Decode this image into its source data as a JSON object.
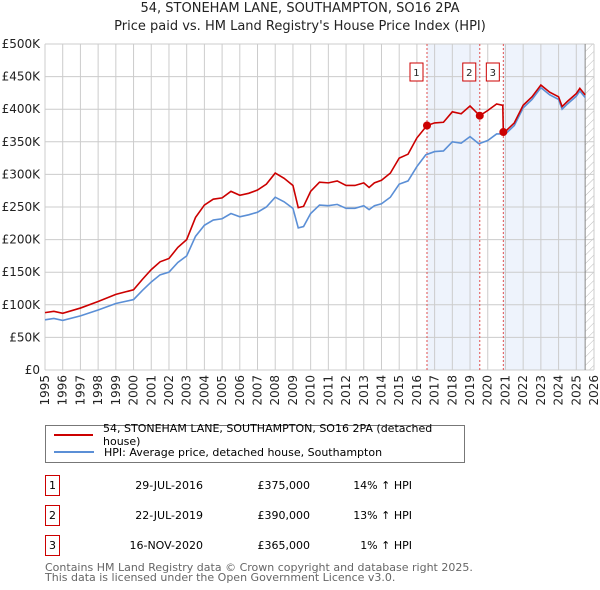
{
  "chart_data": {
    "type": "line",
    "title": "54, STONEHAM LANE, SOUTHAMPTON, SO16 2PA",
    "subtitle": "Price paid vs. HM Land Registry's House Price Index (HPI)",
    "xlim": [
      1995,
      2026
    ],
    "ylim": [
      0,
      500000
    ],
    "y_ticks": [
      {
        "v": 0,
        "label": "£0"
      },
      {
        "v": 50000,
        "label": "£50K"
      },
      {
        "v": 100000,
        "label": "£100K"
      },
      {
        "v": 150000,
        "label": "£150K"
      },
      {
        "v": 200000,
        "label": "£200K"
      },
      {
        "v": 250000,
        "label": "£250K"
      },
      {
        "v": 300000,
        "label": "£300K"
      },
      {
        "v": 350000,
        "label": "£350K"
      },
      {
        "v": 400000,
        "label": "£400K"
      },
      {
        "v": 450000,
        "label": "£450K"
      },
      {
        "v": 500000,
        "label": "£500K"
      }
    ],
    "x_ticks": [
      "1995",
      "1996",
      "1997",
      "1998",
      "1999",
      "2000",
      "2001",
      "2002",
      "2003",
      "2004",
      "2005",
      "2006",
      "2007",
      "2008",
      "2009",
      "2010",
      "2011",
      "2012",
      "2013",
      "2014",
      "2015",
      "2016",
      "2017",
      "2018",
      "2019",
      "2020",
      "2021",
      "2022",
      "2023",
      "2024",
      "2025",
      "2026"
    ],
    "grid": true,
    "series": [
      {
        "name": "54, STONEHAM LANE, SOUTHAMPTON, SO16 2PA (detached house)",
        "color": "#cc0000",
        "x": [
          1995,
          1995.5,
          1996,
          1997,
          1998,
          1999,
          2000,
          2000.5,
          2001,
          2001.5,
          2002,
          2002.5,
          2003,
          2003.5,
          2004,
          2004.5,
          2005,
          2005.5,
          2006,
          2006.5,
          2007,
          2007.5,
          2008,
          2008.5,
          2009,
          2009.3,
          2009.6,
          2010,
          2010.5,
          2011,
          2011.5,
          2012,
          2012.5,
          2013,
          2013.3,
          2013.6,
          2014,
          2014.5,
          2015,
          2015.5,
          2016,
          2016.57,
          2017,
          2017.5,
          2018,
          2018.5,
          2019,
          2019.55,
          2020,
          2020.5,
          2020.85,
          2020.88,
          2021,
          2021.5,
          2022,
          2022.5,
          2023,
          2023.5,
          2024,
          2024.2,
          2024.5,
          2025,
          2025.2,
          2025.5
        ],
        "y": [
          88000,
          90000,
          87000,
          95000,
          105000,
          116000,
          123000,
          139000,
          154000,
          166000,
          171000,
          188000,
          200000,
          234000,
          253000,
          262000,
          264000,
          274000,
          268000,
          271000,
          276000,
          285000,
          302000,
          294000,
          283000,
          249000,
          251000,
          274000,
          288000,
          287000,
          290000,
          283000,
          283000,
          287000,
          280000,
          287000,
          291000,
          302000,
          325000,
          331000,
          356000,
          375000,
          379000,
          380000,
          396000,
          393000,
          405000,
          390000,
          398000,
          408000,
          406000,
          365000,
          366000,
          379000,
          406000,
          419000,
          437000,
          426000,
          419000,
          404000,
          412000,
          424000,
          432000,
          422000
        ]
      },
      {
        "name": "HPI: Average price, detached house, Southampton",
        "color": "#5b8fd6",
        "x": [
          1995,
          1995.5,
          1996,
          1997,
          1998,
          1999,
          2000,
          2000.5,
          2001,
          2001.5,
          2002,
          2002.5,
          2003,
          2003.5,
          2004,
          2004.5,
          2005,
          2005.5,
          2006,
          2006.5,
          2007,
          2007.5,
          2008,
          2008.5,
          2009,
          2009.3,
          2009.6,
          2010,
          2010.5,
          2011,
          2011.5,
          2012,
          2012.5,
          2013,
          2013.3,
          2013.6,
          2014,
          2014.5,
          2015,
          2015.5,
          2016,
          2016.5,
          2017,
          2017.5,
          2018,
          2018.5,
          2019,
          2019.5,
          2020,
          2020.5,
          2021,
          2021.5,
          2022,
          2022.5,
          2023,
          2023.5,
          2024,
          2024.2,
          2024.5,
          2025,
          2025.2,
          2025.5
        ],
        "y": [
          77000,
          79000,
          76000,
          83000,
          92000,
          102000,
          108000,
          122000,
          135000,
          146000,
          150000,
          165000,
          175000,
          205000,
          222000,
          230000,
          232000,
          240000,
          235000,
          238000,
          242000,
          250000,
          265000,
          258000,
          248000,
          218000,
          220000,
          240000,
          253000,
          252000,
          254000,
          248000,
          248000,
          252000,
          246000,
          252000,
          255000,
          265000,
          285000,
          290000,
          312000,
          330000,
          335000,
          336000,
          350000,
          348000,
          358000,
          347000,
          352000,
          362000,
          362000,
          375000,
          402000,
          415000,
          433000,
          422000,
          415000,
          400000,
          408000,
          420000,
          428000,
          418000
        ]
      }
    ],
    "sales": [
      {
        "id": "1",
        "x": 2016.57,
        "date": "29-JUL-2016",
        "price": 375000,
        "price_label": "£375,000",
        "hpi_label": "14% ↑ HPI"
      },
      {
        "id": "2",
        "x": 2019.55,
        "date": "22-JUL-2019",
        "price": 390000,
        "price_label": "£390,000",
        "hpi_label": "13% ↑ HPI"
      },
      {
        "id": "3",
        "x": 2020.88,
        "date": "16-NOV-2020",
        "price": 365000,
        "price_label": "£365,000",
        "hpi_label": "1% ↑ HPI"
      }
    ],
    "data_end": 2025.5,
    "legend_position": "below"
  },
  "footer": {
    "line1": "Contains HM Land Registry data © Crown copyright and database right 2025.",
    "line2": "This data is licensed under the Open Government Licence v3.0."
  }
}
